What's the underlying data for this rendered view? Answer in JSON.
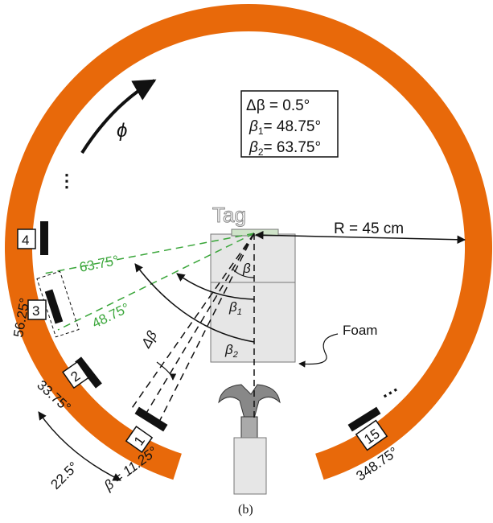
{
  "formula_box": {
    "delta_beta": "Δβ = 0.5°",
    "beta1": {
      "symbol": "β",
      "sub": "1",
      "rest": "= 48.75°"
    },
    "beta2": {
      "symbol": "β",
      "sub": "2",
      "rest": "= 63.75°"
    }
  },
  "phi": "ϕ",
  "tag": "Tag",
  "radius": "R = 45 cm",
  "foam": "Foam",
  "angles": {
    "green_upper": "63.75°",
    "green_lower": "48.75°",
    "beta": "β",
    "beta1": {
      "symbol": "β",
      "sub": "1"
    },
    "beta2": {
      "symbol": "β",
      "sub": "2"
    },
    "delta_beta": "Δβ"
  },
  "antennas": [
    "4",
    "3",
    "2",
    "1",
    "15"
  ],
  "ring_labels": {
    "a56": "56.25°",
    "a33": "33.75°",
    "a22": "22.5°",
    "beta_first": "β = 11.25°",
    "a348": "348.75°"
  },
  "caption": "(b)"
}
